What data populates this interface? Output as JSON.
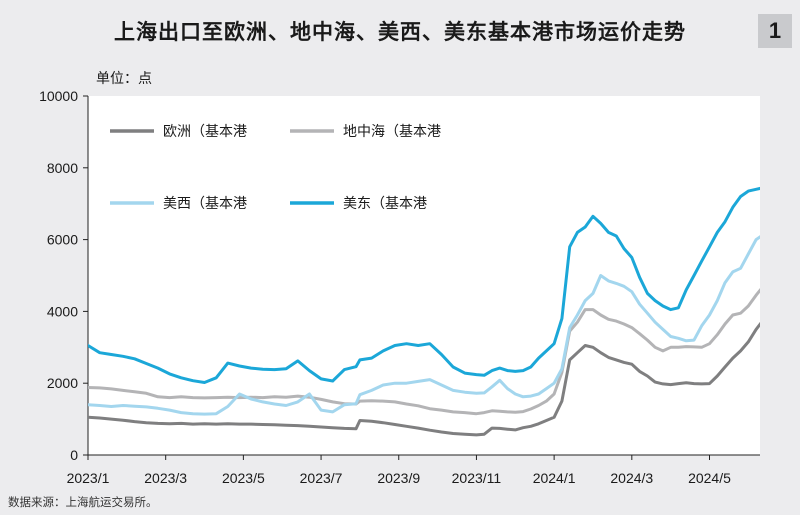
{
  "page": {
    "title": "上海出口至欧洲、地中海、美西、美东基本港市场运价走势",
    "badge": "1",
    "unit_label": "单位：点",
    "source": "数据来源：上海航运交易所。"
  },
  "chart_data": {
    "type": "line",
    "title": "上海出口至欧洲、地中海、美西、美东基本港市场运价走势",
    "ylabel": "单位：点",
    "xlabel": "",
    "ylim": [
      0,
      10000
    ],
    "xlim": [
      0,
      17.3
    ],
    "yticks": [
      0,
      2000,
      4000,
      6000,
      8000,
      10000
    ],
    "xticks": [
      {
        "x": 0,
        "label": "2023/1"
      },
      {
        "x": 2,
        "label": "2023/3"
      },
      {
        "x": 4,
        "label": "2023/5"
      },
      {
        "x": 6,
        "label": "2023/7"
      },
      {
        "x": 8,
        "label": "2023/9"
      },
      {
        "x": 10,
        "label": "2023/11"
      },
      {
        "x": 12,
        "label": "2024/1"
      },
      {
        "x": 14,
        "label": "2024/3"
      },
      {
        "x": 16,
        "label": "2024/5"
      }
    ],
    "legend_position": "top-left",
    "series": [
      {
        "name": "欧洲（基本港",
        "color": "#7f7f80",
        "points": [
          [
            0,
            1050
          ],
          [
            0.3,
            1030
          ],
          [
            0.6,
            1000
          ],
          [
            0.9,
            970
          ],
          [
            1.2,
            930
          ],
          [
            1.5,
            900
          ],
          [
            1.8,
            880
          ],
          [
            2.1,
            870
          ],
          [
            2.4,
            880
          ],
          [
            2.7,
            860
          ],
          [
            3.0,
            870
          ],
          [
            3.3,
            860
          ],
          [
            3.6,
            870
          ],
          [
            3.9,
            860
          ],
          [
            4.2,
            860
          ],
          [
            4.5,
            850
          ],
          [
            4.8,
            840
          ],
          [
            5.1,
            830
          ],
          [
            5.4,
            820
          ],
          [
            5.7,
            800
          ],
          [
            6.0,
            780
          ],
          [
            6.3,
            760
          ],
          [
            6.6,
            740
          ],
          [
            6.9,
            730
          ],
          [
            7.0,
            960
          ],
          [
            7.3,
            940
          ],
          [
            7.6,
            900
          ],
          [
            7.9,
            850
          ],
          [
            8.2,
            800
          ],
          [
            8.5,
            750
          ],
          [
            8.8,
            690
          ],
          [
            9.1,
            640
          ],
          [
            9.4,
            600
          ],
          [
            9.7,
            580
          ],
          [
            10.0,
            560
          ],
          [
            10.2,
            580
          ],
          [
            10.4,
            750
          ],
          [
            10.6,
            740
          ],
          [
            10.8,
            720
          ],
          [
            11.0,
            700
          ],
          [
            11.2,
            760
          ],
          [
            11.4,
            800
          ],
          [
            11.6,
            870
          ],
          [
            11.8,
            960
          ],
          [
            12.0,
            1050
          ],
          [
            12.2,
            1500
          ],
          [
            12.4,
            2650
          ],
          [
            12.6,
            2850
          ],
          [
            12.8,
            3050
          ],
          [
            13.0,
            3000
          ],
          [
            13.2,
            2850
          ],
          [
            13.4,
            2720
          ],
          [
            13.6,
            2650
          ],
          [
            13.8,
            2580
          ],
          [
            14.0,
            2530
          ],
          [
            14.2,
            2330
          ],
          [
            14.4,
            2200
          ],
          [
            14.6,
            2030
          ],
          [
            14.8,
            1980
          ],
          [
            15.0,
            1960
          ],
          [
            15.2,
            1990
          ],
          [
            15.4,
            2010
          ],
          [
            15.6,
            1990
          ],
          [
            15.8,
            1980
          ],
          [
            16.0,
            1990
          ],
          [
            16.2,
            2200
          ],
          [
            16.4,
            2450
          ],
          [
            16.6,
            2700
          ],
          [
            16.8,
            2900
          ],
          [
            17.0,
            3150
          ],
          [
            17.2,
            3500
          ],
          [
            17.4,
            3780
          ],
          [
            17.6,
            3950
          ]
        ]
      },
      {
        "name": "地中海（基本港",
        "color": "#b4b4b6",
        "points": [
          [
            0,
            1880
          ],
          [
            0.3,
            1870
          ],
          [
            0.6,
            1840
          ],
          [
            0.9,
            1800
          ],
          [
            1.2,
            1760
          ],
          [
            1.5,
            1720
          ],
          [
            1.8,
            1620
          ],
          [
            2.1,
            1600
          ],
          [
            2.4,
            1620
          ],
          [
            2.7,
            1600
          ],
          [
            3.0,
            1590
          ],
          [
            3.3,
            1600
          ],
          [
            3.6,
            1610
          ],
          [
            3.9,
            1600
          ],
          [
            4.2,
            1610
          ],
          [
            4.5,
            1600
          ],
          [
            4.8,
            1620
          ],
          [
            5.1,
            1610
          ],
          [
            5.4,
            1640
          ],
          [
            5.7,
            1610
          ],
          [
            6.0,
            1550
          ],
          [
            6.3,
            1480
          ],
          [
            6.6,
            1430
          ],
          [
            6.9,
            1420
          ],
          [
            7.0,
            1500
          ],
          [
            7.3,
            1510
          ],
          [
            7.6,
            1500
          ],
          [
            7.9,
            1480
          ],
          [
            8.2,
            1420
          ],
          [
            8.5,
            1370
          ],
          [
            8.8,
            1290
          ],
          [
            9.1,
            1250
          ],
          [
            9.4,
            1200
          ],
          [
            9.7,
            1180
          ],
          [
            10.0,
            1150
          ],
          [
            10.2,
            1180
          ],
          [
            10.4,
            1230
          ],
          [
            10.6,
            1220
          ],
          [
            10.8,
            1200
          ],
          [
            11.0,
            1190
          ],
          [
            11.2,
            1210
          ],
          [
            11.4,
            1280
          ],
          [
            11.6,
            1380
          ],
          [
            11.8,
            1500
          ],
          [
            12.0,
            1700
          ],
          [
            12.2,
            2300
          ],
          [
            12.4,
            3450
          ],
          [
            12.6,
            3700
          ],
          [
            12.8,
            4050
          ],
          [
            13.0,
            4050
          ],
          [
            13.2,
            3900
          ],
          [
            13.4,
            3780
          ],
          [
            13.6,
            3730
          ],
          [
            13.8,
            3650
          ],
          [
            14.0,
            3550
          ],
          [
            14.2,
            3380
          ],
          [
            14.4,
            3200
          ],
          [
            14.6,
            3000
          ],
          [
            14.8,
            2900
          ],
          [
            15.0,
            3000
          ],
          [
            15.2,
            3000
          ],
          [
            15.4,
            3020
          ],
          [
            15.6,
            3010
          ],
          [
            15.8,
            3000
          ],
          [
            16.0,
            3100
          ],
          [
            16.2,
            3350
          ],
          [
            16.4,
            3650
          ],
          [
            16.6,
            3900
          ],
          [
            16.8,
            3950
          ],
          [
            17.0,
            4150
          ],
          [
            17.2,
            4450
          ],
          [
            17.4,
            4720
          ],
          [
            17.6,
            4780
          ]
        ]
      },
      {
        "name": "美西（基本港",
        "color": "#a3d6ee",
        "points": [
          [
            0,
            1400
          ],
          [
            0.3,
            1380
          ],
          [
            0.6,
            1350
          ],
          [
            0.9,
            1380
          ],
          [
            1.2,
            1360
          ],
          [
            1.5,
            1340
          ],
          [
            1.8,
            1300
          ],
          [
            2.1,
            1250
          ],
          [
            2.4,
            1180
          ],
          [
            2.7,
            1150
          ],
          [
            3.0,
            1140
          ],
          [
            3.3,
            1150
          ],
          [
            3.6,
            1350
          ],
          [
            3.9,
            1700
          ],
          [
            4.2,
            1560
          ],
          [
            4.5,
            1480
          ],
          [
            4.8,
            1420
          ],
          [
            5.1,
            1380
          ],
          [
            5.4,
            1480
          ],
          [
            5.7,
            1700
          ],
          [
            6.0,
            1250
          ],
          [
            6.3,
            1200
          ],
          [
            6.6,
            1400
          ],
          [
            6.9,
            1430
          ],
          [
            7.0,
            1680
          ],
          [
            7.3,
            1800
          ],
          [
            7.6,
            1950
          ],
          [
            7.9,
            2000
          ],
          [
            8.2,
            2000
          ],
          [
            8.5,
            2050
          ],
          [
            8.8,
            2100
          ],
          [
            9.1,
            1950
          ],
          [
            9.4,
            1800
          ],
          [
            9.7,
            1750
          ],
          [
            10.0,
            1720
          ],
          [
            10.2,
            1730
          ],
          [
            10.4,
            1900
          ],
          [
            10.6,
            2080
          ],
          [
            10.8,
            1850
          ],
          [
            11.0,
            1700
          ],
          [
            11.2,
            1620
          ],
          [
            11.4,
            1640
          ],
          [
            11.6,
            1700
          ],
          [
            11.8,
            1850
          ],
          [
            12.0,
            2000
          ],
          [
            12.2,
            2400
          ],
          [
            12.4,
            3550
          ],
          [
            12.6,
            3900
          ],
          [
            12.8,
            4300
          ],
          [
            13.0,
            4500
          ],
          [
            13.2,
            5000
          ],
          [
            13.4,
            4850
          ],
          [
            13.6,
            4780
          ],
          [
            13.8,
            4700
          ],
          [
            14.0,
            4550
          ],
          [
            14.2,
            4200
          ],
          [
            14.4,
            3950
          ],
          [
            14.6,
            3700
          ],
          [
            14.8,
            3500
          ],
          [
            15.0,
            3300
          ],
          [
            15.2,
            3250
          ],
          [
            15.4,
            3180
          ],
          [
            15.6,
            3200
          ],
          [
            15.8,
            3600
          ],
          [
            16.0,
            3900
          ],
          [
            16.2,
            4300
          ],
          [
            16.4,
            4800
          ],
          [
            16.6,
            5100
          ],
          [
            16.8,
            5200
          ],
          [
            17.0,
            5600
          ],
          [
            17.2,
            6000
          ],
          [
            17.4,
            6150
          ],
          [
            17.6,
            6200
          ]
        ]
      },
      {
        "name": "美东（基本港",
        "color": "#1ba7d8",
        "points": [
          [
            0,
            3050
          ],
          [
            0.3,
            2850
          ],
          [
            0.6,
            2800
          ],
          [
            0.9,
            2750
          ],
          [
            1.2,
            2680
          ],
          [
            1.5,
            2550
          ],
          [
            1.8,
            2420
          ],
          [
            2.1,
            2260
          ],
          [
            2.4,
            2150
          ],
          [
            2.7,
            2070
          ],
          [
            3.0,
            2020
          ],
          [
            3.3,
            2150
          ],
          [
            3.6,
            2560
          ],
          [
            3.9,
            2480
          ],
          [
            4.2,
            2420
          ],
          [
            4.5,
            2390
          ],
          [
            4.8,
            2380
          ],
          [
            5.1,
            2400
          ],
          [
            5.4,
            2620
          ],
          [
            5.7,
            2350
          ],
          [
            6.0,
            2120
          ],
          [
            6.3,
            2060
          ],
          [
            6.6,
            2380
          ],
          [
            6.9,
            2460
          ],
          [
            7.0,
            2650
          ],
          [
            7.3,
            2700
          ],
          [
            7.6,
            2900
          ],
          [
            7.9,
            3050
          ],
          [
            8.2,
            3100
          ],
          [
            8.5,
            3050
          ],
          [
            8.8,
            3100
          ],
          [
            9.1,
            2800
          ],
          [
            9.4,
            2450
          ],
          [
            9.7,
            2280
          ],
          [
            10.0,
            2240
          ],
          [
            10.2,
            2220
          ],
          [
            10.4,
            2350
          ],
          [
            10.6,
            2420
          ],
          [
            10.8,
            2350
          ],
          [
            11.0,
            2330
          ],
          [
            11.2,
            2350
          ],
          [
            11.4,
            2450
          ],
          [
            11.6,
            2700
          ],
          [
            11.8,
            2900
          ],
          [
            12.0,
            3100
          ],
          [
            12.2,
            3800
          ],
          [
            12.4,
            5800
          ],
          [
            12.6,
            6200
          ],
          [
            12.8,
            6350
          ],
          [
            13.0,
            6650
          ],
          [
            13.2,
            6450
          ],
          [
            13.4,
            6200
          ],
          [
            13.6,
            6100
          ],
          [
            13.8,
            5750
          ],
          [
            14.0,
            5500
          ],
          [
            14.2,
            4950
          ],
          [
            14.4,
            4500
          ],
          [
            14.6,
            4300
          ],
          [
            14.8,
            4150
          ],
          [
            15.0,
            4050
          ],
          [
            15.2,
            4100
          ],
          [
            15.4,
            4600
          ],
          [
            15.6,
            5000
          ],
          [
            15.8,
            5400
          ],
          [
            16.0,
            5800
          ],
          [
            16.2,
            6200
          ],
          [
            16.4,
            6500
          ],
          [
            16.6,
            6900
          ],
          [
            16.8,
            7200
          ],
          [
            17.0,
            7350
          ],
          [
            17.2,
            7400
          ],
          [
            17.4,
            7450
          ],
          [
            17.6,
            7450
          ]
        ]
      }
    ]
  }
}
